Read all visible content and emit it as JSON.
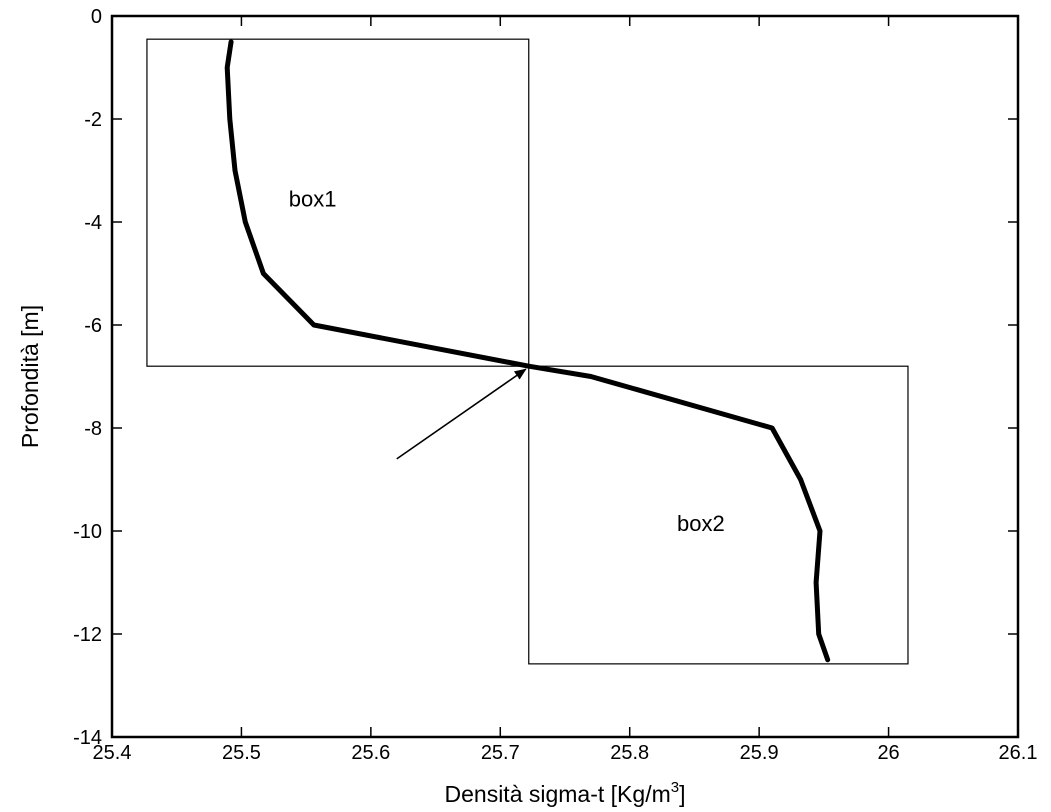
{
  "chart_data": {
    "type": "line",
    "xlabel_main": "Densità sigma-t [Kg/m",
    "xlabel_sup": "3",
    "xlabel_end": "]",
    "ylabel": "Profondità [m]",
    "xlim": [
      25.4,
      26.1
    ],
    "ylim": [
      -14,
      0
    ],
    "xticks": [
      25.4,
      25.5,
      25.6,
      25.7,
      25.8,
      25.9,
      26,
      26.1
    ],
    "xtick_labels": [
      "25.4",
      "25.5",
      "25.6",
      "25.7",
      "25.8",
      "25.9",
      "26",
      "26.1"
    ],
    "yticks": [
      0,
      -2,
      -4,
      -6,
      -8,
      -10,
      -12,
      -14
    ],
    "ytick_labels": [
      "0",
      "-2",
      "-4",
      "-6",
      "-8",
      "-10",
      "-12",
      "-14"
    ],
    "grid": false,
    "series": [
      {
        "x": [
          25.492,
          25.489,
          25.491,
          25.495,
          25.503,
          25.517,
          25.556,
          25.722,
          25.77,
          25.91,
          25.932,
          25.947,
          25.944,
          25.946,
          25.953
        ],
        "y": [
          -0.5,
          -1,
          -2,
          -3,
          -4,
          -5,
          -6,
          -6.8,
          -7,
          -8,
          -9,
          -10,
          -11,
          -12,
          -12.5
        ]
      }
    ],
    "boxes": [
      {
        "label": "box1",
        "x0": 25.427,
        "x1": 25.722,
        "y0": -6.8,
        "y1": -0.45,
        "label_x": 25.555,
        "label_y": -3.7
      },
      {
        "label": "box2",
        "x0": 25.722,
        "x1": 26.015,
        "y0": -12.58,
        "y1": -6.8,
        "label_x": 25.855,
        "label_y": -10.0
      }
    ],
    "annotation_arrow": {
      "from": [
        25.62,
        -8.6
      ],
      "to": [
        25.722,
        -6.8
      ]
    }
  }
}
